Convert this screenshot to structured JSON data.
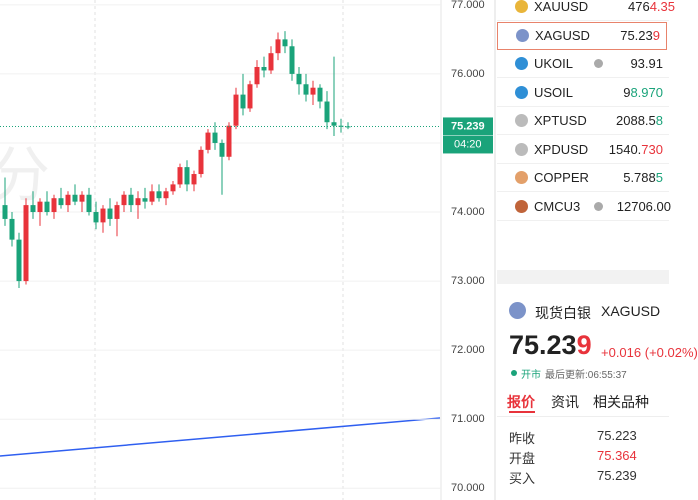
{
  "chart_data": {
    "type": "candlestick",
    "ylim": [
      69.83,
      77.07
    ],
    "yticks": [
      {
        "value": 77,
        "label": "77.000"
      },
      {
        "value": 76,
        "label": "76.000"
      },
      {
        "value": 75,
        "label": "75.000"
      },
      {
        "value": 74,
        "label": "74.000"
      },
      {
        "value": 73,
        "label": "73.000"
      },
      {
        "value": 72,
        "label": "72.000"
      },
      {
        "value": 71,
        "label": "71.000"
      },
      {
        "value": 70,
        "label": "70.000"
      }
    ],
    "up_color": "#e8333b",
    "down_color": "#1aa37a",
    "grid": true,
    "watermark": "分",
    "last_price": {
      "value": 75.239,
      "label": "75.239"
    },
    "countdown": "04:20",
    "candles": [
      [
        74.1,
        74.5,
        73.8,
        73.9
      ],
      [
        73.9,
        74.0,
        73.5,
        73.6
      ],
      [
        73.6,
        73.7,
        72.9,
        73.0
      ],
      [
        73.0,
        74.2,
        72.95,
        74.1
      ],
      [
        74.1,
        74.3,
        73.9,
        74.0
      ],
      [
        74.0,
        74.2,
        73.8,
        74.15
      ],
      [
        74.15,
        74.3,
        73.95,
        74.0
      ],
      [
        74.0,
        74.25,
        73.9,
        74.2
      ],
      [
        74.2,
        74.35,
        74.05,
        74.1
      ],
      [
        74.1,
        74.3,
        74.0,
        74.25
      ],
      [
        74.25,
        74.4,
        74.1,
        74.15
      ],
      [
        74.15,
        74.3,
        74.0,
        74.25
      ],
      [
        74.25,
        74.35,
        73.95,
        74.0
      ],
      [
        74.0,
        74.15,
        73.75,
        73.85
      ],
      [
        73.85,
        74.1,
        73.7,
        74.05
      ],
      [
        74.05,
        74.2,
        73.8,
        73.9
      ],
      [
        73.9,
        74.15,
        73.65,
        74.1
      ],
      [
        74.1,
        74.3,
        74.0,
        74.25
      ],
      [
        74.25,
        74.35,
        74.0,
        74.1
      ],
      [
        74.1,
        74.3,
        73.9,
        74.2
      ],
      [
        74.2,
        74.35,
        74.05,
        74.15
      ],
      [
        74.15,
        74.4,
        74.1,
        74.3
      ],
      [
        74.3,
        74.4,
        74.15,
        74.2
      ],
      [
        74.2,
        74.35,
        74.1,
        74.3
      ],
      [
        74.3,
        74.45,
        74.25,
        74.4
      ],
      [
        74.4,
        74.7,
        74.35,
        74.65
      ],
      [
        74.65,
        74.75,
        74.3,
        74.4
      ],
      [
        74.4,
        74.6,
        74.3,
        74.55
      ],
      [
        74.55,
        74.95,
        74.5,
        74.9
      ],
      [
        74.9,
        75.2,
        74.85,
        75.15
      ],
      [
        75.15,
        75.3,
        74.9,
        75.0
      ],
      [
        75.0,
        75.05,
        74.25,
        74.8
      ],
      [
        74.8,
        75.3,
        74.75,
        75.25
      ],
      [
        75.25,
        75.8,
        75.2,
        75.7
      ],
      [
        75.7,
        76.0,
        75.4,
        75.5
      ],
      [
        75.5,
        75.9,
        75.45,
        75.85
      ],
      [
        75.85,
        76.2,
        75.8,
        76.1
      ],
      [
        76.1,
        76.25,
        75.95,
        76.05
      ],
      [
        76.05,
        76.4,
        76.0,
        76.3
      ],
      [
        76.3,
        76.6,
        76.2,
        76.5
      ],
      [
        76.5,
        76.62,
        76.3,
        76.4
      ],
      [
        76.4,
        76.5,
        75.9,
        76.0
      ],
      [
        76.0,
        76.1,
        75.7,
        75.85
      ],
      [
        75.85,
        76.0,
        75.6,
        75.7
      ],
      [
        75.7,
        75.9,
        75.55,
        75.8
      ],
      [
        75.8,
        75.85,
        75.5,
        75.6
      ],
      [
        75.6,
        75.75,
        75.2,
        75.3
      ],
      [
        75.3,
        76.25,
        75.1,
        75.25
      ],
      [
        75.25,
        75.35,
        75.15,
        75.24
      ],
      [
        75.24,
        75.3,
        75.2,
        75.239
      ]
    ]
  },
  "watchlist": [
    {
      "symbol": "XAUUSD",
      "main": "476",
      "tail": "4.35",
      "tail_color": "#e8333b",
      "icon": "#e9b53a"
    },
    {
      "symbol": "XAGUSD",
      "main": "75.23",
      "tail": "9",
      "tail_color": "#e8333b",
      "icon": "#7c93c9"
    },
    {
      "symbol": "UKOIL",
      "main": "93.91",
      "tail": "",
      "tail_color": "#333",
      "icon": "#2f8fd6"
    },
    {
      "symbol": "USOIL",
      "main": "9",
      "tail": "8.970",
      "tail_color": "#1aa37a",
      "icon": "#2f8fd6"
    },
    {
      "symbol": "XPTUSD",
      "main": "2088.5",
      "tail": "8",
      "tail_color": "#1aa37a",
      "icon": "#bbb"
    },
    {
      "symbol": "XPDUSD",
      "main": "1540.",
      "tail": "730",
      "tail_color": "#e8333b",
      "icon": "#bbb"
    },
    {
      "symbol": "COPPER",
      "main": "5.788",
      "tail": "5",
      "tail_color": "#1aa37a",
      "icon": "#e3a06a"
    },
    {
      "symbol": "CMCU3",
      "main": "12706.00",
      "tail": "",
      "tail_color": "#333",
      "icon": "#c0643a"
    }
  ],
  "detail": {
    "name": "现货白银",
    "symbol": "XAGUSD",
    "price_main": "75.23",
    "price_tail": "9",
    "change": "+0.016",
    "change_pct": "(+0.02%)",
    "status": "开市",
    "updated": "最后更新:06:55:37",
    "tabs": [
      "报价",
      "资讯",
      "相关品种"
    ],
    "rows": [
      [
        "昨收",
        "75.223"
      ],
      [
        "开盘",
        "75.364"
      ],
      [
        "买入",
        "75.239"
      ]
    ]
  }
}
